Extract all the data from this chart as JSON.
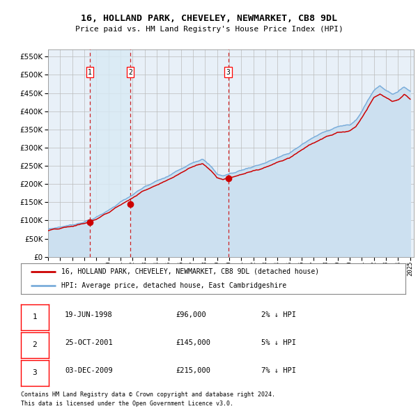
{
  "title": "16, HOLLAND PARK, CHEVELEY, NEWMARKET, CB8 9DL",
  "subtitle": "Price paid vs. HM Land Registry's House Price Index (HPI)",
  "sale_dates_dec": [
    1998.464,
    2001.817,
    2009.922
  ],
  "sale_prices": [
    96000,
    145000,
    215000
  ],
  "sale_labels": [
    "1",
    "2",
    "3"
  ],
  "sale_info": [
    [
      "1",
      "19-JUN-1998",
      "£96,000",
      "2% ↓ HPI"
    ],
    [
      "2",
      "25-OCT-2001",
      "£145,000",
      "5% ↓ HPI"
    ],
    [
      "3",
      "03-DEC-2009",
      "£215,000",
      "7% ↓ HPI"
    ]
  ],
  "legend_entries": [
    "16, HOLLAND PARK, CHEVELEY, NEWMARKET, CB8 9DL (detached house)",
    "HPI: Average price, detached house, East Cambridgeshire"
  ],
  "price_line_color": "#cc0000",
  "hpi_line_color": "#7aaddb",
  "hpi_fill_color": "#cce0f0",
  "vline_color": "#cc0000",
  "vband_color": "#d8eaf5",
  "marker_color": "#cc0000",
  "grid_color": "#bbbbbb",
  "background_color": "#ffffff",
  "plot_bg_color": "#e8f0f8",
  "ylim": [
    0,
    570000
  ],
  "yticks": [
    0,
    50000,
    100000,
    150000,
    200000,
    250000,
    300000,
    350000,
    400000,
    450000,
    500000,
    550000
  ],
  "xstart_year": 1995,
  "xend_year": 2025,
  "footnote1": "Contains HM Land Registry data © Crown copyright and database right 2024.",
  "footnote2": "This data is licensed under the Open Government Licence v3.0."
}
